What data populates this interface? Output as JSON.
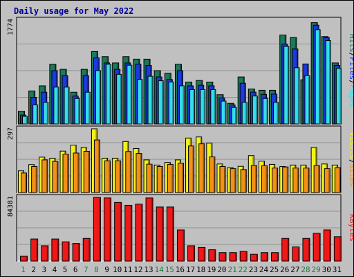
{
  "chart_data": {
    "type": "bar",
    "title": "Daily usage for May 2022",
    "colors": {
      "background": "#c0c0c0",
      "title": "#0000a0",
      "hits": "#1a7a5a",
      "files": "#1a3adc",
      "pages": "#33ddee",
      "visits": "#f3f318",
      "sites": "#f39018",
      "kbytes": "#ee1818",
      "weekday": "#000000",
      "weekend": "#1a7a3a",
      "gridline": "#909090"
    },
    "categories": [
      "1",
      "2",
      "3",
      "4",
      "5",
      "6",
      "7",
      "8",
      "9",
      "10",
      "11",
      "12",
      "13",
      "14",
      "15",
      "16",
      "17",
      "18",
      "19",
      "20",
      "21",
      "22",
      "23",
      "24",
      "25",
      "26",
      "27",
      "28",
      "29",
      "30",
      "31"
    ],
    "weekend_days": [
      "1",
      "7",
      "8",
      "14",
      "15",
      "21",
      "22",
      "28",
      "29"
    ],
    "panels": [
      {
        "name": "hits-files-pages",
        "ymax_label": "1774",
        "ylim": [
          0,
          1774
        ],
        "series": [
          {
            "name": "Hits",
            "color_key": "hits",
            "values": [
              217,
              564,
              651,
              1020,
              933,
              542,
              933,
              1237,
              1150,
              1042,
              1150,
              1107,
              1107,
              911,
              868,
              1020,
              716,
              743,
              716,
              500,
              352,
              803,
              598,
              575,
              575,
              1519,
              1476,
              754,
              1731,
              1493,
              1042
            ]
          },
          {
            "name": "Files",
            "color_key": "files",
            "values": [
              152,
              455,
              542,
              911,
              825,
              477,
              825,
              1129,
              1042,
              933,
              1042,
              1020,
              998,
              803,
              759,
              911,
              651,
              660,
              651,
              444,
              325,
              695,
              543,
              505,
              510,
              1364,
              1280,
              1025,
              1688,
              1475,
              1000
            ]
          },
          {
            "name": "Pages",
            "color_key": "pages",
            "values": [
              130,
              325,
              369,
              629,
              629,
              434,
              542,
              911,
              1020,
              847,
              1003,
              760,
              814,
              738,
              716,
              651,
              586,
              586,
              586,
              390,
              282,
              369,
              477,
              434,
              369,
              1324,
              960,
              825,
              1610,
              1424,
              950
            ]
          }
        ],
        "legend": [
          {
            "text": "Hits",
            "color_key": "hits"
          },
          {
            "text": "/",
            "color_key": "weekday"
          },
          {
            "text": "Files",
            "color_key": "files"
          },
          {
            "text": "/",
            "color_key": "weekday"
          },
          {
            "text": "Pages",
            "color_key": "pages"
          }
        ]
      },
      {
        "name": "visits-sites",
        "ymax_label": "297",
        "ylim": [
          0,
          297
        ],
        "series": [
          {
            "name": "Visits",
            "color_key": "visits",
            "values": [
              101,
              130,
              165,
              160,
              193,
              221,
              210,
              297,
              160,
              160,
              238,
              205,
              152,
              128,
              140,
              152,
              254,
              259,
              230,
              133,
              116,
              122,
              172,
              146,
              131,
              121,
              128,
              128,
              210,
              133,
              128
            ]
          },
          {
            "name": "Sites",
            "color_key": "sites",
            "values": [
              91,
              121,
              152,
              145,
              179,
              184,
              192,
              245,
              148,
              148,
              191,
              182,
              132,
              121,
              131,
              137,
              217,
              227,
              166,
              121,
              111,
              107,
              126,
              125,
              114,
              119,
              114,
              114,
              126,
              111,
              116
            ]
          }
        ],
        "legend": [
          {
            "text": "Visits",
            "color_key": "visits"
          },
          {
            "text": "/",
            "color_key": "weekday"
          },
          {
            "text": "Sites",
            "color_key": "sites"
          }
        ]
      },
      {
        "name": "kbytes",
        "ymax_label": "84381",
        "ylim": [
          0,
          84381
        ],
        "series": [
          {
            "name": "KBytes",
            "color_key": "kbytes",
            "values": [
              6380,
              29270,
              20260,
              29270,
              25520,
              23270,
              30020,
              84381,
              83630,
              77630,
              73880,
              75380,
              83630,
              71630,
              71630,
              41270,
              20260,
              18010,
              15010,
              11260,
              11260,
              12760,
              9010,
              11260,
              11260,
              30020,
              18760,
              30020,
              36770,
              41270,
              32270
            ]
          }
        ],
        "legend": [
          {
            "text": "KBytes",
            "color_key": "kbytes"
          }
        ]
      }
    ],
    "grid": true
  }
}
